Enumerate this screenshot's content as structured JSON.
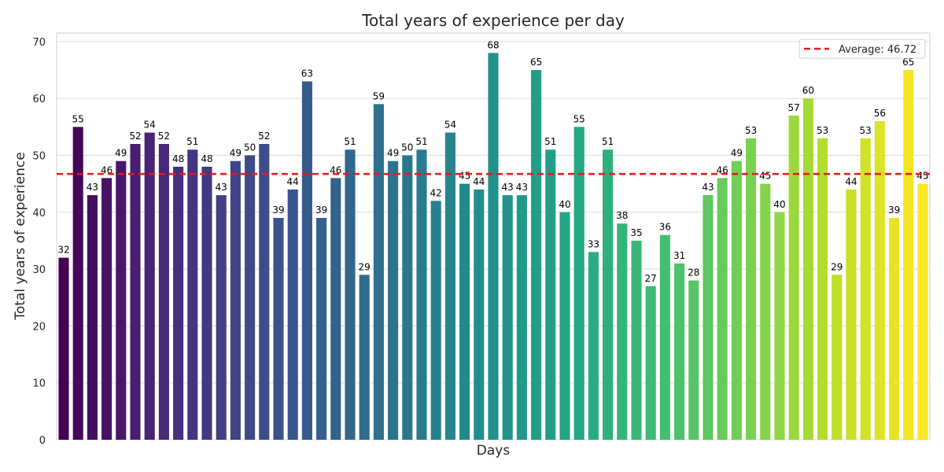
{
  "chart_data": {
    "type": "bar",
    "title": "Total years of experience per day",
    "xlabel": "Days",
    "ylabel": "Total years of experience",
    "ylim": [
      0,
      71.5
    ],
    "yticks": [
      0,
      10,
      20,
      30,
      40,
      50,
      60,
      70
    ],
    "grid": true,
    "legend_position": "top-right",
    "colormap": "viridis",
    "values": [
      32,
      55,
      43,
      46,
      49,
      52,
      54,
      52,
      48,
      51,
      48,
      43,
      49,
      50,
      52,
      39,
      44,
      63,
      39,
      46,
      51,
      29,
      59,
      49,
      50,
      51,
      42,
      54,
      45,
      44,
      68,
      43,
      43,
      65,
      51,
      40,
      55,
      33,
      51,
      38,
      35,
      27,
      36,
      31,
      28,
      43,
      46,
      49,
      53,
      45,
      40,
      57,
      60,
      53,
      29,
      44,
      53,
      56,
      39,
      65,
      45
    ],
    "average": {
      "value": 46.72,
      "label": "Average: 46.72",
      "color": "#e41a1c",
      "style": "dashed"
    }
  }
}
